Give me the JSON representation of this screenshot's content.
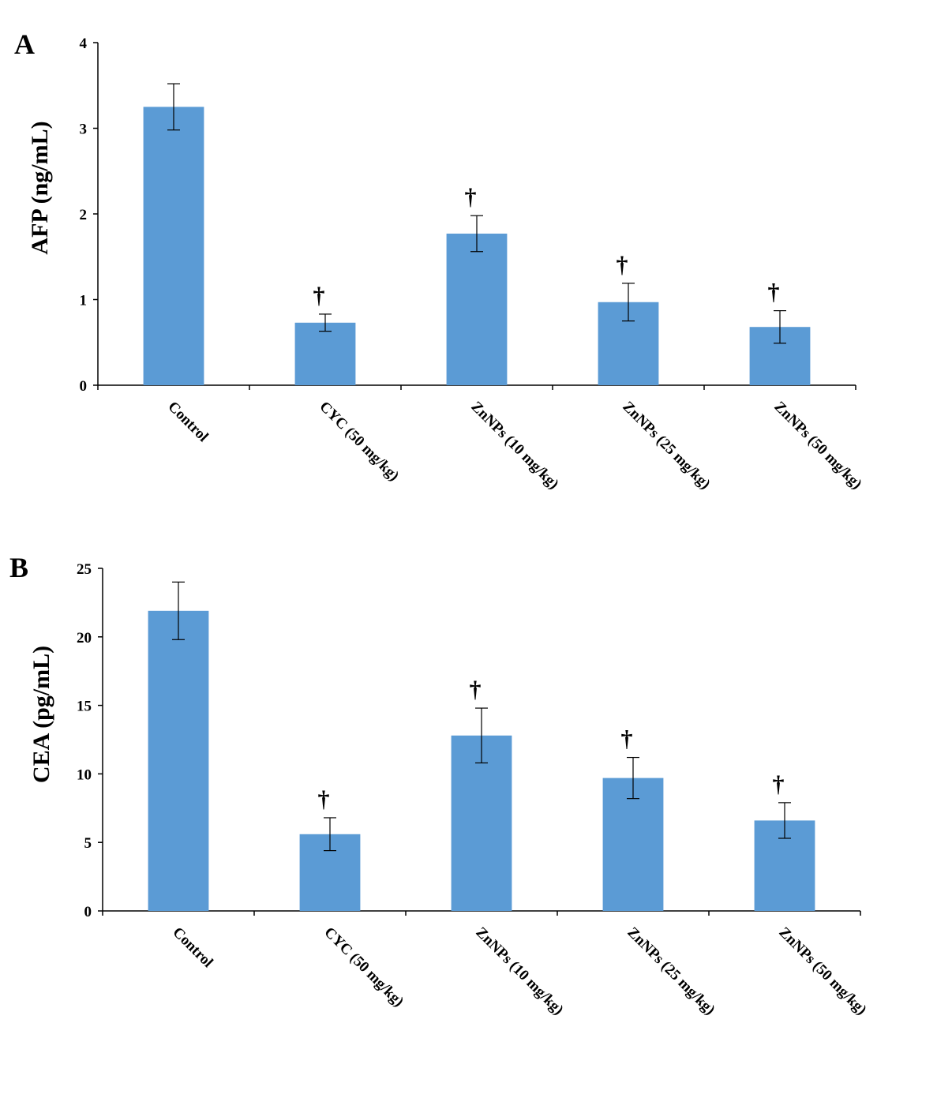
{
  "colors": {
    "bar": "#5b9bd5",
    "axis": "#000000"
  },
  "chart_data": [
    {
      "type": "bar",
      "panel_label": "A",
      "ylabel": "AFP (ng/mL)",
      "xlabel": "",
      "title": "",
      "categories": [
        "Control",
        "CYC (50 mg/kg)",
        "ZnNPs (10 mg/kg)",
        "ZnNPs (25 mg/kg)",
        "ZnNPs (50 mg/kg)"
      ],
      "values": [
        3.25,
        0.73,
        1.77,
        0.97,
        0.68
      ],
      "errors": [
        0.27,
        0.1,
        0.21,
        0.22,
        0.19
      ],
      "significance": [
        "",
        "†",
        "†",
        "†",
        "†"
      ],
      "ylim": [
        0,
        4
      ],
      "yticks": [
        0,
        1,
        2,
        3,
        4
      ],
      "grid": false,
      "legend": "none"
    },
    {
      "type": "bar",
      "panel_label": "B",
      "ylabel": "CEA (pg/mL)",
      "xlabel": "",
      "title": "",
      "categories": [
        "Control",
        "CYC (50 mg/kg)",
        "ZnNPs (10 mg/kg)",
        "ZnNPs (25 mg/kg)",
        "ZnNPs (50 mg/kg)"
      ],
      "values": [
        21.9,
        5.6,
        12.8,
        9.7,
        6.6
      ],
      "errors": [
        2.1,
        1.2,
        2.0,
        1.5,
        1.3
      ],
      "significance": [
        "",
        "†",
        "†",
        "†",
        "†"
      ],
      "ylim": [
        0,
        25
      ],
      "yticks": [
        0,
        5,
        10,
        15,
        20,
        25
      ],
      "grid": false,
      "legend": "none"
    }
  ]
}
